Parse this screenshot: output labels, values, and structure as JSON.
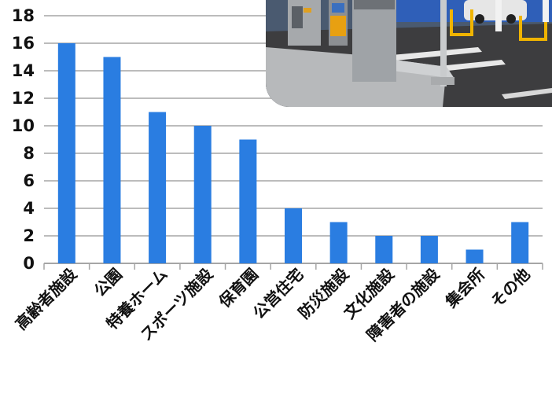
{
  "chart_data": {
    "type": "bar",
    "categories": [
      "高齢者施設",
      "公園",
      "特養ホーム",
      "スポーツ施設",
      "保育園",
      "公営住宅",
      "防災施設",
      "文化施設",
      "障害者の施設",
      "集会所",
      "その他"
    ],
    "values": [
      16,
      15,
      11,
      10,
      9,
      4,
      3,
      2,
      2,
      1,
      3
    ],
    "yticks": [
      0,
      2,
      4,
      6,
      8,
      10,
      12,
      14,
      16,
      18
    ],
    "ylim": [
      0,
      18
    ],
    "grid": true,
    "bar_color": "#2a7de1",
    "grid_color": "#a6a6a6"
  },
  "photo": {
    "icon": "parking-lot-photo"
  }
}
